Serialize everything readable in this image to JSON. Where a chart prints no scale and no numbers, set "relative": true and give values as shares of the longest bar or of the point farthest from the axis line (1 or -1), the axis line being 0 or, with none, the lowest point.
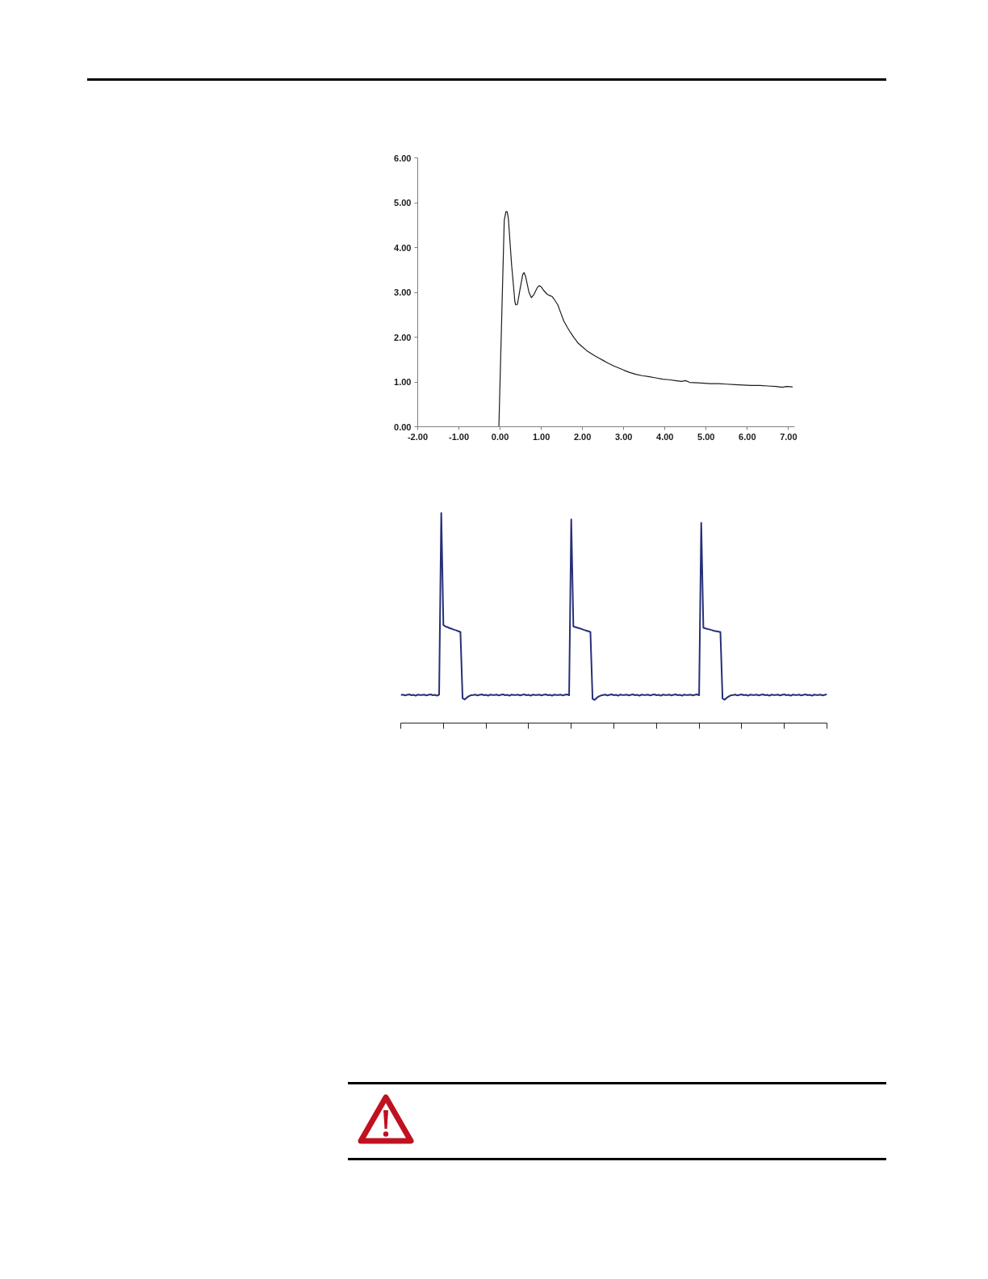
{
  "chart_data": [
    {
      "type": "line",
      "color": "#1c1c1c",
      "x": [
        -0.03,
        0.1,
        0.14,
        0.17,
        0.2,
        0.28,
        0.36,
        0.38,
        0.42,
        0.48,
        0.55,
        0.58,
        0.62,
        0.7,
        0.76,
        0.82,
        0.9,
        0.95,
        1.0,
        1.05,
        1.1,
        1.15,
        1.2,
        1.27,
        1.33,
        1.4,
        1.48,
        1.55,
        1.63,
        1.71,
        1.8,
        1.9,
        2.0,
        2.1,
        2.2,
        2.3,
        2.4,
        2.5,
        2.62,
        2.75,
        2.88,
        3.01,
        3.15,
        3.3,
        3.45,
        3.6,
        3.78,
        3.95,
        4.1,
        4.25,
        4.4,
        4.5,
        4.6,
        4.8,
        4.95,
        5.1,
        5.3,
        5.5,
        5.7,
        5.9,
        6.1,
        6.3,
        6.5,
        6.7,
        6.85,
        6.95,
        7.1
      ],
      "values": [
        0.0,
        4.6,
        4.8,
        4.8,
        4.65,
        3.6,
        2.78,
        2.72,
        2.73,
        3.05,
        3.4,
        3.44,
        3.35,
        3.0,
        2.88,
        2.95,
        3.1,
        3.15,
        3.12,
        3.05,
        3.0,
        2.95,
        2.93,
        2.9,
        2.82,
        2.72,
        2.52,
        2.35,
        2.22,
        2.1,
        1.98,
        1.86,
        1.78,
        1.7,
        1.64,
        1.58,
        1.53,
        1.48,
        1.42,
        1.36,
        1.31,
        1.26,
        1.21,
        1.17,
        1.14,
        1.12,
        1.09,
        1.06,
        1.05,
        1.03,
        1.01,
        1.03,
        0.99,
        0.98,
        0.97,
        0.96,
        0.96,
        0.95,
        0.94,
        0.93,
        0.92,
        0.92,
        0.91,
        0.9,
        0.88,
        0.9,
        0.89
      ],
      "xlim": [
        -2,
        7.15
      ],
      "xticks": [
        {
          "value": -2,
          "label": "-2.00"
        },
        {
          "value": -1,
          "label": "-1.00"
        },
        {
          "value": 0,
          "label": "0.00"
        },
        {
          "value": 1,
          "label": "1.00"
        },
        {
          "value": 2,
          "label": "2.00"
        },
        {
          "value": 3,
          "label": "3.00"
        },
        {
          "value": 4,
          "label": "4.00"
        },
        {
          "value": 5,
          "label": "5.00"
        },
        {
          "value": 6,
          "label": "6.00"
        },
        {
          "value": 7,
          "label": "7.00"
        }
      ],
      "ylim": [
        0,
        6
      ],
      "yticks": [
        {
          "value": 0,
          "label": "0.00"
        },
        {
          "value": 1,
          "label": "1.00"
        },
        {
          "value": 2,
          "label": "2.00"
        },
        {
          "value": 3,
          "label": "3.00"
        },
        {
          "value": 4,
          "label": "4.00"
        },
        {
          "value": 5,
          "label": "5.00"
        },
        {
          "value": 6,
          "label": "6.00"
        }
      ]
    },
    {
      "type": "line",
      "color": "#262f78",
      "relative": true,
      "categories": [
        null,
        null,
        null,
        null,
        null,
        null,
        null,
        null,
        null,
        null,
        null,
        null,
        null,
        null,
        null,
        null,
        null,
        null,
        null,
        null,
        null,
        null,
        null,
        null,
        null,
        null,
        null,
        null,
        null,
        null,
        null,
        null,
        null,
        null,
        null,
        null,
        null,
        null,
        null,
        null,
        null,
        null,
        null,
        null,
        null,
        null,
        null,
        null,
        null,
        null,
        null,
        null,
        null,
        null,
        null,
        null,
        null,
        null,
        null,
        null,
        null,
        null,
        null,
        null,
        null,
        null,
        null,
        null,
        null,
        null,
        null,
        null,
        null,
        null,
        null,
        null,
        null,
        null,
        null,
        null,
        null,
        null,
        null,
        null,
        null,
        null,
        null,
        null,
        null,
        null,
        null,
        null,
        null,
        null,
        null,
        null,
        null,
        null,
        null,
        null,
        null,
        null,
        null,
        null,
        null,
        null,
        null,
        null,
        null,
        null,
        null,
        null,
        null,
        null,
        null,
        null,
        null,
        null,
        null,
        null,
        null,
        null,
        null,
        null,
        null,
        null,
        null,
        null,
        null,
        null,
        null,
        null,
        null,
        null,
        null,
        null,
        null,
        null,
        null,
        null,
        null,
        null,
        null,
        null,
        null,
        null,
        null,
        null,
        null,
        null,
        null,
        null,
        null,
        null,
        null,
        null,
        null,
        null,
        null,
        null,
        null,
        null,
        null,
        null,
        null,
        null,
        null,
        null,
        null,
        null,
        null,
        null,
        null,
        null,
        null,
        null,
        null,
        null,
        null,
        null,
        null,
        null,
        null,
        null,
        null,
        null,
        null,
        null,
        null,
        null,
        null,
        null,
        null,
        null,
        null,
        null,
        null,
        null,
        null,
        null,
        null
      ],
      "values": [
        0.133,
        0.135,
        0.131,
        0.134,
        0.136,
        0.132,
        0.134,
        0.13,
        0.135,
        0.133,
        0.133,
        0.135,
        0.131,
        0.134,
        0.136,
        0.132,
        0.134,
        0.13,
        0.135,
        1,
        0.466,
        0.458,
        0.455,
        0.45,
        0.447,
        0.443,
        0.44,
        0.436,
        0.432,
        0.118,
        0.112,
        0.121,
        0.128,
        0.132,
        0.133,
        0.135,
        0.131,
        0.134,
        0.136,
        0.132,
        0.134,
        0.13,
        0.135,
        0.133,
        0.133,
        0.135,
        0.131,
        0.134,
        0.136,
        0.132,
        0.134,
        0.13,
        0.135,
        0.133,
        0.133,
        0.135,
        0.131,
        0.134,
        0.136,
        0.132,
        0.134,
        0.13,
        0.135,
        0.133,
        0.133,
        0.135,
        0.131,
        0.134,
        0.136,
        0.132,
        0.134,
        0.13,
        0.135,
        0.133,
        0.133,
        0.135,
        0.131,
        0.134,
        0.136,
        0.132,
        0.966,
        0.459,
        0.455,
        0.452,
        0.449,
        0.446,
        0.442,
        0.439,
        0.436,
        0.432,
        0.115,
        0.11,
        0.12,
        0.127,
        0.131,
        0.133,
        0.135,
        0.131,
        0.134,
        0.136,
        0.132,
        0.134,
        0.13,
        0.135,
        0.133,
        0.133,
        0.135,
        0.131,
        0.134,
        0.136,
        0.132,
        0.134,
        0.13,
        0.135,
        0.133,
        0.133,
        0.135,
        0.131,
        0.134,
        0.136,
        0.132,
        0.134,
        0.13,
        0.135,
        0.133,
        0.133,
        0.135,
        0.131,
        0.134,
        0.136,
        0.132,
        0.134,
        0.13,
        0.135,
        0.133,
        0.133,
        0.135,
        0.131,
        0.134,
        0.136,
        0.132,
        0.95,
        0.452,
        0.449,
        0.446,
        0.444,
        0.441,
        0.438,
        0.436,
        0.434,
        0.432,
        0.116,
        0.111,
        0.12,
        0.127,
        0.132,
        0.133,
        0.135,
        0.131,
        0.134,
        0.136,
        0.132,
        0.134,
        0.13,
        0.135,
        0.133,
        0.133,
        0.135,
        0.131,
        0.134,
        0.136,
        0.132,
        0.134,
        0.13,
        0.135,
        0.133,
        0.133,
        0.135,
        0.131,
        0.134,
        0.136,
        0.132,
        0.134,
        0.13,
        0.135,
        0.133,
        0.133,
        0.135,
        0.131,
        0.134,
        0.136,
        0.132,
        0.134,
        0.13,
        0.135,
        0.133,
        0.133,
        0.135,
        0.131,
        0.134,
        0.136
      ]
    }
  ]
}
